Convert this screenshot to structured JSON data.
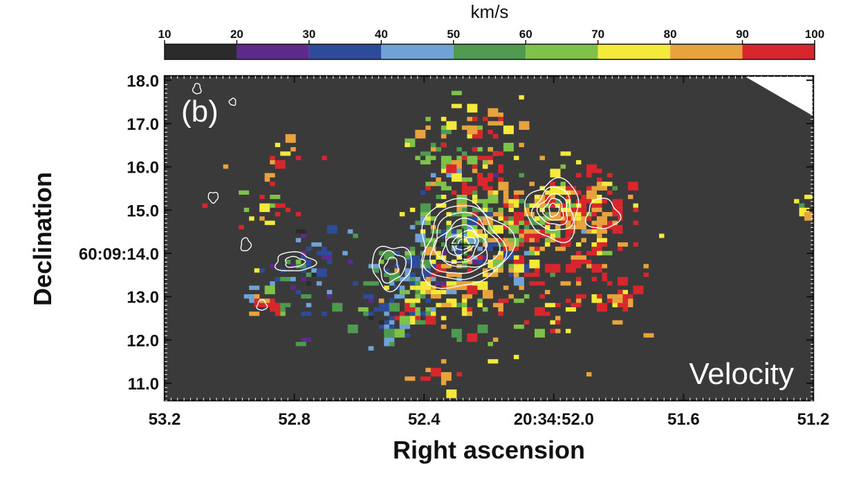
{
  "chart_data": {
    "type": "heatmap",
    "panel_label": "(b)",
    "map_label": "Velocity",
    "xlabel": "Right ascension",
    "ylabel": "Declination",
    "colorbar": {
      "unit": "km/s",
      "ticks": [
        "10",
        "20",
        "30",
        "40",
        "50",
        "60",
        "70",
        "80",
        "90",
        "100"
      ],
      "bins": [
        {
          "from": 10,
          "to": 20,
          "color": "#2b2b2b"
        },
        {
          "from": 20,
          "to": 30,
          "color": "#5e2a8c"
        },
        {
          "from": 30,
          "to": 40,
          "color": "#2e4a9a"
        },
        {
          "from": 40,
          "to": 50,
          "color": "#6fa3d8"
        },
        {
          "from": 50,
          "to": 60,
          "color": "#4e9a4e"
        },
        {
          "from": 60,
          "to": 70,
          "color": "#7fc24a"
        },
        {
          "from": 70,
          "to": 80,
          "color": "#f4ea3a"
        },
        {
          "from": 80,
          "to": 90,
          "color": "#e9a33c"
        },
        {
          "from": 90,
          "to": 100,
          "color": "#d9252c"
        }
      ]
    },
    "xaxis": {
      "range": [
        53.2,
        51.2
      ],
      "ticks": [
        {
          "value": 53.2,
          "label": "53.2"
        },
        {
          "value": 52.8,
          "label": "52.8"
        },
        {
          "value": 52.4,
          "label": "52.4"
        },
        {
          "value": 52.0,
          "label": "20:34:52.0"
        },
        {
          "value": 51.6,
          "label": "51.6"
        },
        {
          "value": 51.2,
          "label": "51.2"
        }
      ]
    },
    "yaxis": {
      "range": [
        10.6,
        18.1
      ],
      "ticks": [
        {
          "value": 18.0,
          "label": "18.0"
        },
        {
          "value": 17.0,
          "label": "17.0"
        },
        {
          "value": 16.0,
          "label": "16.0"
        },
        {
          "value": 15.0,
          "label": "15.0"
        },
        {
          "value": 14.0,
          "label": "60:09:14.0"
        },
        {
          "value": 13.0,
          "label": "13.0"
        },
        {
          "value": 12.0,
          "label": "12.0"
        },
        {
          "value": 11.0,
          "label": "11.0"
        }
      ]
    },
    "background_velocity": 15,
    "pixel_size": {
      "ra": 0.016,
      "dec": 0.1
    },
    "blobs": [
      {
        "ra": 52.05,
        "dec": 15.0,
        "sra": 0.1,
        "sdec": 0.55,
        "v": 75,
        "n": 130
      },
      {
        "ra": 51.88,
        "dec": 14.9,
        "sra": 0.08,
        "sdec": 0.5,
        "v": 95,
        "n": 80
      },
      {
        "ra": 51.95,
        "dec": 13.7,
        "sra": 0.1,
        "sdec": 0.6,
        "v": 95,
        "n": 60
      },
      {
        "ra": 52.22,
        "dec": 15.9,
        "sra": 0.07,
        "sdec": 0.6,
        "v": 90,
        "n": 55
      },
      {
        "ra": 52.22,
        "dec": 14.2,
        "sra": 0.06,
        "sdec": 0.3,
        "v": 35,
        "n": 45
      },
      {
        "ra": 52.3,
        "dec": 14.6,
        "sra": 0.08,
        "sdec": 0.4,
        "v": 62,
        "n": 90
      },
      {
        "ra": 52.25,
        "dec": 13.1,
        "sra": 0.09,
        "sdec": 0.5,
        "v": 82,
        "n": 90
      },
      {
        "ra": 52.45,
        "dec": 13.6,
        "sra": 0.06,
        "sdec": 0.4,
        "v": 45,
        "n": 60
      },
      {
        "ra": 52.52,
        "dec": 12.5,
        "sra": 0.05,
        "sdec": 0.5,
        "v": 45,
        "n": 40
      },
      {
        "ra": 52.42,
        "dec": 12.9,
        "sra": 0.06,
        "sdec": 0.4,
        "v": 75,
        "n": 40
      },
      {
        "ra": 52.35,
        "dec": 16.4,
        "sra": 0.06,
        "sdec": 0.5,
        "v": 65,
        "n": 45
      },
      {
        "ra": 52.12,
        "dec": 14.5,
        "sra": 0.06,
        "sdec": 0.4,
        "v": 80,
        "n": 50
      },
      {
        "ra": 52.75,
        "dec": 13.9,
        "sra": 0.05,
        "sdec": 0.35,
        "v": 38,
        "n": 35
      },
      {
        "ra": 52.82,
        "dec": 13.2,
        "sra": 0.07,
        "sdec": 0.5,
        "v": 45,
        "n": 35
      },
      {
        "ra": 52.9,
        "dec": 13.0,
        "sra": 0.03,
        "sdec": 0.2,
        "v": 95,
        "n": 12
      },
      {
        "ra": 52.9,
        "dec": 15.2,
        "sra": 0.06,
        "sdec": 0.6,
        "v": 90,
        "n": 20
      },
      {
        "ra": 52.85,
        "dec": 16.2,
        "sra": 0.08,
        "sdec": 0.5,
        "v": 95,
        "n": 10
      },
      {
        "ra": 52.0,
        "dec": 12.7,
        "sra": 0.05,
        "sdec": 0.3,
        "v": 95,
        "n": 12
      },
      {
        "ra": 52.38,
        "dec": 11.2,
        "sra": 0.05,
        "sdec": 0.25,
        "v": 92,
        "n": 10
      },
      {
        "ra": 51.82,
        "dec": 13.0,
        "sra": 0.03,
        "sdec": 0.2,
        "v": 95,
        "n": 18
      },
      {
        "ra": 51.24,
        "dec": 15.2,
        "sra": 0.015,
        "sdec": 0.1,
        "v": 80,
        "n": 6
      },
      {
        "ra": 52.22,
        "dec": 16.9,
        "sra": 0.08,
        "sdec": 0.35,
        "v": 85,
        "n": 30
      }
    ],
    "contours": [
      {
        "ra": 52.28,
        "dec": 14.2,
        "rra": [
          0.02,
          0.035,
          0.05,
          0.065,
          0.08,
          0.1,
          0.12,
          0.14
        ],
        "rdec": [
          0.12,
          0.2,
          0.3,
          0.42,
          0.55,
          0.7,
          0.85,
          1.0
        ],
        "rot": -20
      },
      {
        "ra": 52.0,
        "dec": 15.0,
        "rra": [
          0.015,
          0.03,
          0.045,
          0.06,
          0.08
        ],
        "rdec": [
          0.15,
          0.25,
          0.35,
          0.5,
          0.7
        ],
        "rot": 0
      },
      {
        "ra": 52.5,
        "dec": 13.7,
        "rra": [
          0.02,
          0.04,
          0.06
        ],
        "rdec": [
          0.2,
          0.35,
          0.5
        ],
        "rot": 10
      },
      {
        "ra": 52.8,
        "dec": 13.8,
        "rra": [
          0.03,
          0.06
        ],
        "rdec": [
          0.12,
          0.22
        ],
        "rot": 0
      },
      {
        "ra": 51.85,
        "dec": 14.9,
        "rra": [
          0.05
        ],
        "rdec": [
          0.35
        ],
        "rot": 0
      },
      {
        "ra": 52.95,
        "dec": 14.2,
        "rra": [
          0.015
        ],
        "rdec": [
          0.15
        ],
        "rot": 0
      },
      {
        "ra": 53.05,
        "dec": 15.3,
        "rra": [
          0.015
        ],
        "rdec": [
          0.12
        ],
        "rot": 0
      },
      {
        "ra": 52.9,
        "dec": 12.8,
        "rra": [
          0.015
        ],
        "rdec": [
          0.12
        ],
        "rot": 0
      },
      {
        "ra": 53.1,
        "dec": 17.8,
        "rra": [
          0.012
        ],
        "rdec": [
          0.12
        ],
        "rot": 0
      },
      {
        "ra": 52.99,
        "dec": 17.5,
        "rra": [
          0.01
        ],
        "rdec": [
          0.08
        ],
        "rot": 0
      }
    ],
    "cross": {
      "ra": 52.28,
      "dec": 14.2
    }
  }
}
